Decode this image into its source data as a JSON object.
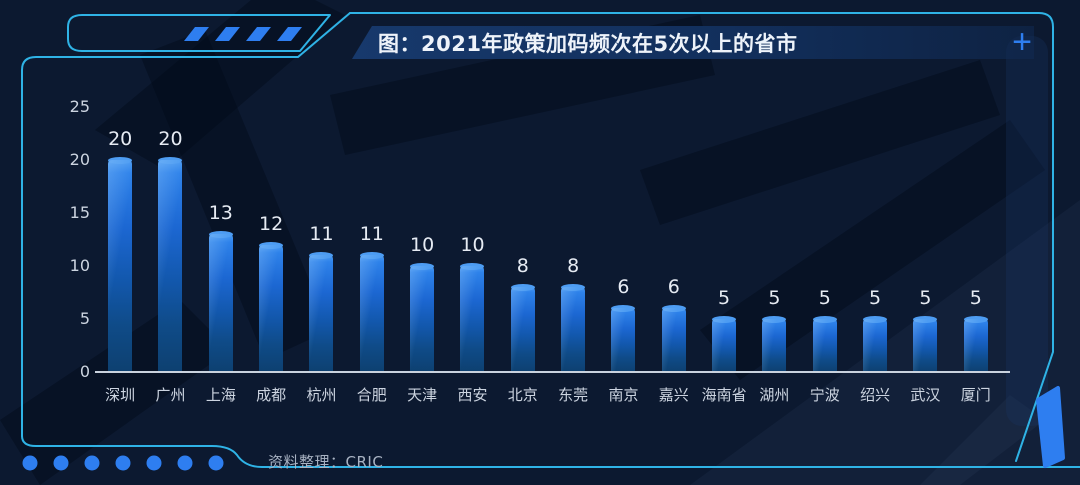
{
  "header": {
    "title": "图：2021年政策加码频次在5次以上的省市",
    "plus_icon": "+"
  },
  "footer": {
    "source_label": "资料整理：CRIC"
  },
  "colors": {
    "background": "#0c1930",
    "frame_cyan": "#2fb3e6",
    "accent_blue": "#2e7ef0",
    "bar_top": "#4d9cf2",
    "bar_body": "#1c67d2",
    "bar_bottom": "#0d4070",
    "title_band": "#17396c",
    "text_primary": "#eef3fa",
    "text_axis": "#ccd4e0",
    "text_source": "#a8b2c2"
  },
  "decorations": {
    "dot_count": 7,
    "parallelogram_count": 4
  },
  "chart_data": {
    "type": "bar",
    "title": "图：2021年政策加码频次在5次以上的省市",
    "categories": [
      "深圳",
      "广州",
      "上海",
      "成都",
      "杭州",
      "合肥",
      "天津",
      "西安",
      "北京",
      "东莞",
      "南京",
      "嘉兴",
      "海南省",
      "湖州",
      "宁波",
      "绍兴",
      "武汉",
      "厦门"
    ],
    "values": [
      20,
      20,
      13,
      12,
      11,
      11,
      10,
      10,
      8,
      8,
      6,
      6,
      5,
      5,
      5,
      5,
      5,
      5
    ],
    "xlabel": "",
    "ylabel": "",
    "ylim": [
      0,
      25
    ],
    "ytick_step": 5,
    "grid": false,
    "legend": false,
    "value_labels": true,
    "source": "资料整理：CRIC"
  }
}
